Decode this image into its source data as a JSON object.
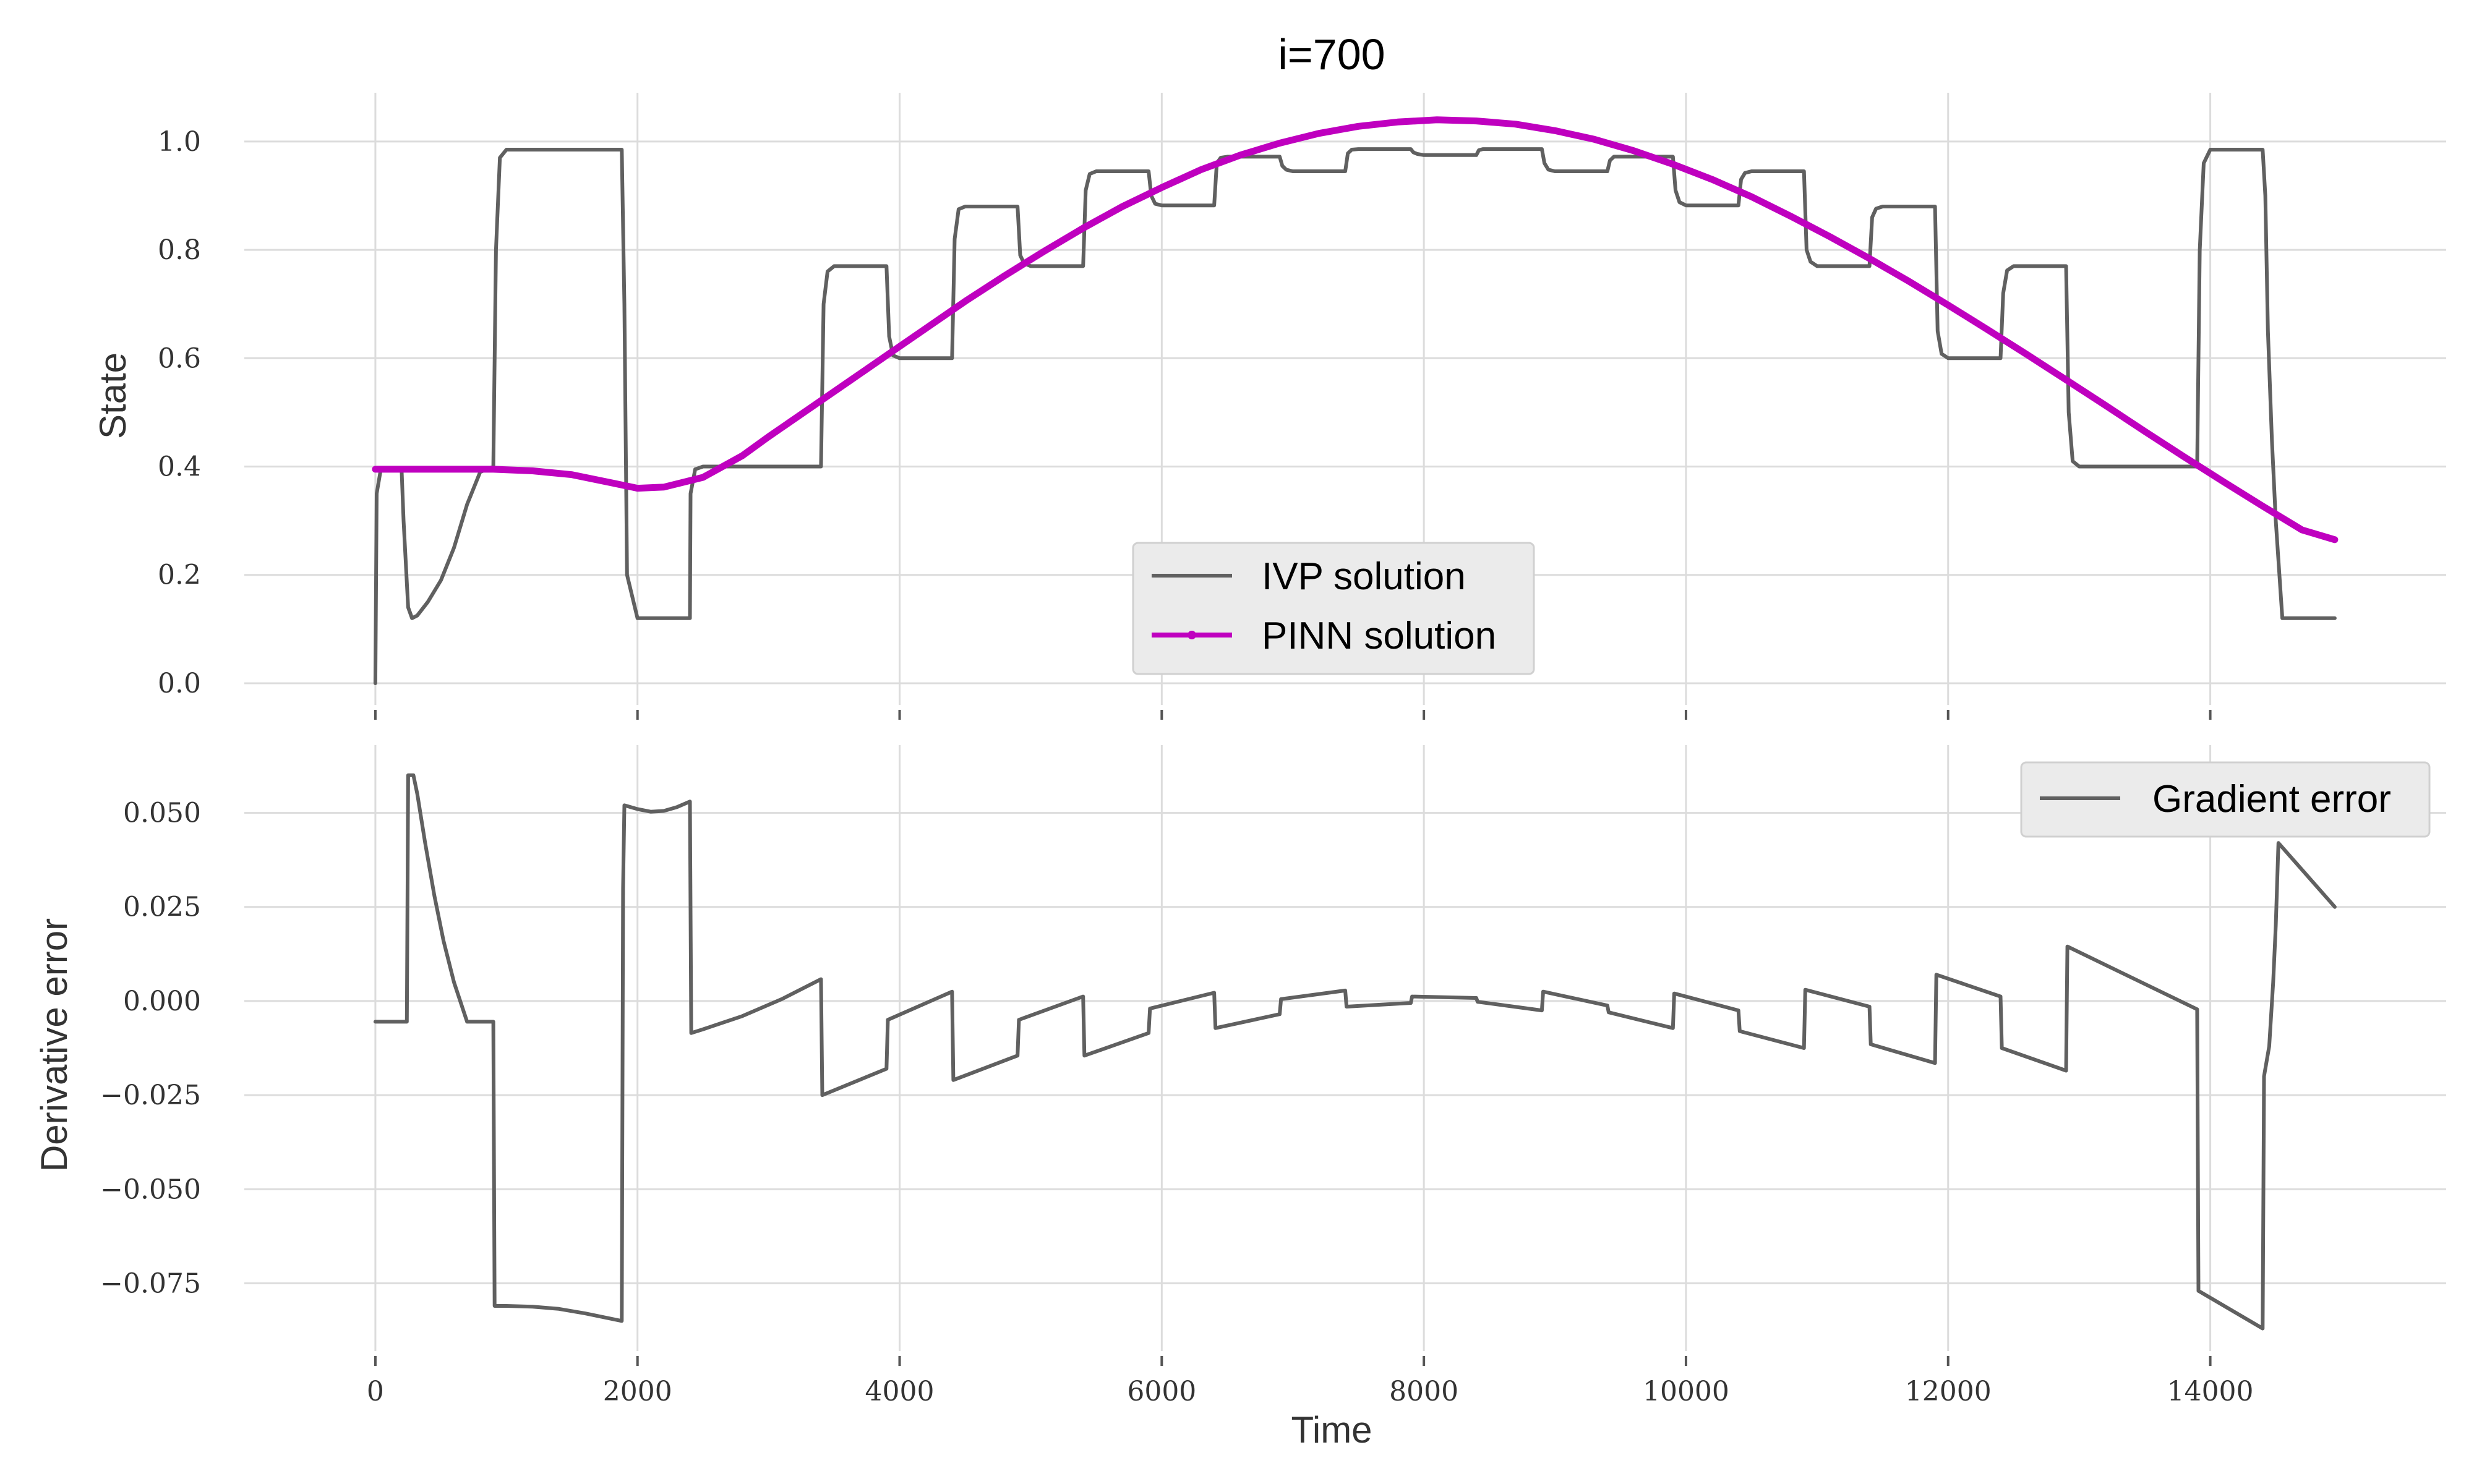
{
  "chart_data": [
    {
      "type": "line",
      "title": "i=700",
      "xlabel": "",
      "ylabel": "State",
      "xlim": [
        -1000,
        15800
      ],
      "ylim": [
        -0.04,
        1.09
      ],
      "x_ticks": [
        0,
        2000,
        4000,
        6000,
        8000,
        10000,
        12000,
        14000
      ],
      "y_ticks": [
        0.0,
        0.2,
        0.4,
        0.6,
        0.8,
        1.0
      ],
      "y_tick_labels": [
        "0.0",
        "0.2",
        "0.4",
        "0.6",
        "0.8",
        "1.0"
      ],
      "grid": true,
      "legend_position": "lower-center",
      "series": [
        {
          "name": "IVP solution",
          "color": "#606060",
          "x": [
            0,
            10,
            40,
            200,
            215,
            250,
            280,
            320,
            400,
            500,
            600,
            700,
            800,
            900,
            920,
            950,
            1000,
            1880,
            1900,
            1920,
            2000,
            2400,
            2405,
            2440,
            2500,
            3400,
            3420,
            3450,
            3500,
            3900,
            3920,
            3950,
            4000,
            4400,
            4420,
            4450,
            4500,
            4900,
            4920,
            4950,
            5000,
            5400,
            5420,
            5450,
            5500,
            5900,
            5920,
            5950,
            6000,
            6400,
            6420,
            6450,
            6500,
            6900,
            6920,
            6950,
            7000,
            7400,
            7420,
            7450,
            7500,
            7900,
            7920,
            7950,
            8000,
            8400,
            8420,
            8450,
            8500,
            8900,
            8920,
            8950,
            9000,
            9400,
            9420,
            9450,
            9500,
            9900,
            9920,
            9950,
            10000,
            10400,
            10420,
            10450,
            10500,
            10900,
            10920,
            10950,
            11000,
            11400,
            11420,
            11450,
            11500,
            11900,
            11920,
            11950,
            12000,
            12400,
            12420,
            12450,
            12500,
            12900,
            12920,
            12950,
            13000,
            13900,
            13920,
            13950,
            14000,
            14400,
            14420,
            14440,
            14470,
            14500,
            14550,
            14950
          ],
          "y": [
            0.0,
            0.35,
            0.393,
            0.395,
            0.3,
            0.14,
            0.12,
            0.125,
            0.15,
            0.19,
            0.25,
            0.33,
            0.39,
            0.4,
            0.8,
            0.97,
            0.985,
            0.985,
            0.7,
            0.2,
            0.12,
            0.12,
            0.35,
            0.395,
            0.4,
            0.4,
            0.7,
            0.76,
            0.77,
            0.77,
            0.64,
            0.605,
            0.6,
            0.6,
            0.82,
            0.875,
            0.88,
            0.88,
            0.79,
            0.775,
            0.77,
            0.77,
            0.91,
            0.94,
            0.945,
            0.945,
            0.9,
            0.885,
            0.882,
            0.882,
            0.96,
            0.97,
            0.972,
            0.972,
            0.955,
            0.948,
            0.945,
            0.945,
            0.978,
            0.985,
            0.986,
            0.986,
            0.98,
            0.977,
            0.975,
            0.975,
            0.984,
            0.986,
            0.986,
            0.986,
            0.96,
            0.948,
            0.945,
            0.945,
            0.965,
            0.972,
            0.972,
            0.972,
            0.91,
            0.888,
            0.882,
            0.882,
            0.93,
            0.942,
            0.945,
            0.945,
            0.8,
            0.778,
            0.77,
            0.77,
            0.86,
            0.876,
            0.88,
            0.88,
            0.65,
            0.608,
            0.6,
            0.6,
            0.72,
            0.762,
            0.77,
            0.77,
            0.5,
            0.41,
            0.4,
            0.4,
            0.8,
            0.96,
            0.985,
            0.985,
            0.9,
            0.65,
            0.45,
            0.3,
            0.12,
            0.12
          ]
        },
        {
          "name": "PINN solution",
          "color": "#bf00bf",
          "x": [
            0,
            300,
            600,
            900,
            1200,
            1500,
            1800,
            2000,
            2200,
            2500,
            2800,
            3000,
            3300,
            3600,
            3900,
            4200,
            4500,
            4800,
            5100,
            5400,
            5700,
            6000,
            6300,
            6600,
            6900,
            7200,
            7500,
            7800,
            8100,
            8400,
            8700,
            9000,
            9300,
            9600,
            9900,
            10200,
            10500,
            10800,
            11100,
            11400,
            11700,
            12000,
            12300,
            12600,
            12900,
            13200,
            13500,
            13800,
            14100,
            14400,
            14700,
            14950
          ],
          "y": [
            0.395,
            0.395,
            0.395,
            0.395,
            0.392,
            0.385,
            0.37,
            0.36,
            0.362,
            0.38,
            0.42,
            0.455,
            0.505,
            0.555,
            0.605,
            0.655,
            0.705,
            0.752,
            0.797,
            0.84,
            0.88,
            0.915,
            0.948,
            0.975,
            0.997,
            1.015,
            1.028,
            1.036,
            1.04,
            1.038,
            1.032,
            1.02,
            1.004,
            0.983,
            0.958,
            0.93,
            0.898,
            0.862,
            0.824,
            0.784,
            0.742,
            0.698,
            0.653,
            0.607,
            0.56,
            0.513,
            0.465,
            0.418,
            0.372,
            0.327,
            0.283,
            0.265
          ]
        }
      ]
    },
    {
      "type": "line",
      "title": "",
      "xlabel": "Time",
      "ylabel": "Derivative error",
      "xlim": [
        -1000,
        15800
      ],
      "ylim": [
        -0.093,
        0.068
      ],
      "x_ticks": [
        0,
        2000,
        4000,
        6000,
        8000,
        10000,
        12000,
        14000
      ],
      "x_tick_labels": [
        "0",
        "2000",
        "4000",
        "6000",
        "8000",
        "10000",
        "12000",
        "14000"
      ],
      "y_ticks": [
        -0.075,
        -0.05,
        -0.025,
        0.0,
        0.025,
        0.05
      ],
      "y_tick_labels": [
        "−0.075",
        "−0.050",
        "−0.025",
        "0.000",
        "0.025",
        "0.050"
      ],
      "grid": true,
      "legend_position": "top-right",
      "series": [
        {
          "name": "Gradient error",
          "color": "#606060",
          "x": [
            0,
            240,
            250,
            290,
            320,
            380,
            450,
            520,
            600,
            700,
            900,
            910,
            1000,
            1200,
            1400,
            1600,
            1880,
            1890,
            1900,
            2000,
            2100,
            2200,
            2300,
            2400,
            2410,
            2500,
            2800,
            3100,
            3400,
            3410,
            3900,
            3910,
            4400,
            4410,
            4900,
            4910,
            5400,
            5410,
            5900,
            5910,
            6400,
            6410,
            6900,
            6910,
            7400,
            7410,
            7900,
            7910,
            8400,
            8410,
            8900,
            8910,
            9400,
            9410,
            9900,
            9910,
            10400,
            10410,
            10900,
            10910,
            11400,
            11410,
            11900,
            11910,
            12400,
            12410,
            12900,
            12910,
            13900,
            13910,
            14400,
            14410,
            14450,
            14480,
            14500,
            14520,
            14950
          ],
          "y": [
            -0.0055,
            -0.0055,
            0.06,
            0.06,
            0.055,
            0.042,
            0.028,
            0.016,
            0.005,
            -0.0055,
            -0.0055,
            -0.081,
            -0.081,
            -0.0812,
            -0.0818,
            -0.083,
            -0.085,
            0.03,
            0.052,
            0.051,
            0.0503,
            0.0505,
            0.0515,
            0.053,
            -0.0085,
            -0.0075,
            -0.004,
            0.0005,
            0.0058,
            -0.025,
            -0.018,
            -0.005,
            0.0025,
            -0.021,
            -0.0145,
            -0.005,
            0.0012,
            -0.0145,
            -0.0085,
            -0.002,
            0.0022,
            -0.0072,
            -0.0035,
            0.0005,
            0.0028,
            -0.0015,
            -0.0005,
            0.0012,
            0.0008,
            -0.0002,
            -0.0025,
            0.0025,
            -0.0012,
            -0.003,
            -0.0072,
            0.002,
            -0.0025,
            -0.008,
            -0.0125,
            0.003,
            -0.0015,
            -0.0115,
            -0.0165,
            0.007,
            0.0012,
            -0.0125,
            -0.0185,
            0.0145,
            -0.0022,
            -0.077,
            -0.087,
            -0.02,
            -0.012,
            0.005,
            0.02,
            0.042,
            0.025
          ]
        }
      ]
    }
  ]
}
